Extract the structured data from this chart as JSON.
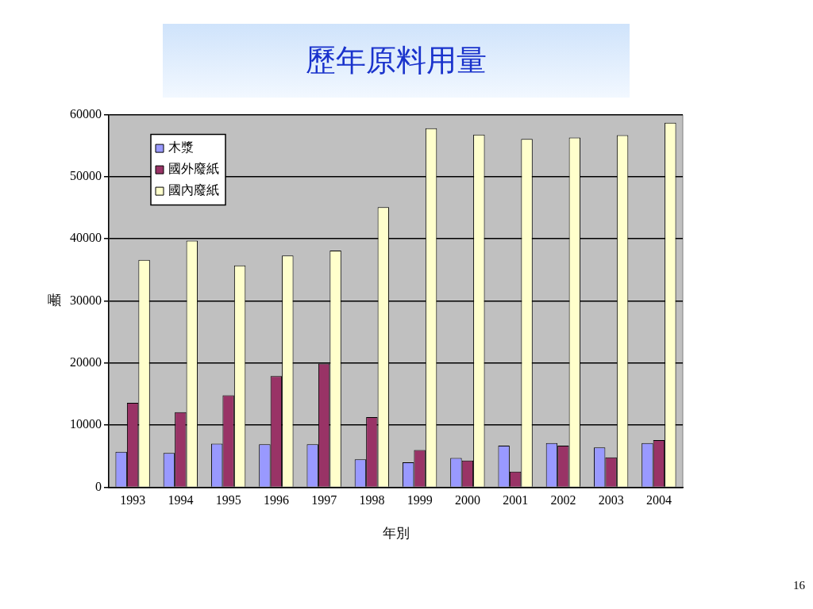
{
  "chart_data": {
    "type": "bar",
    "title": "歷年原料用量",
    "xlabel": "年別",
    "ylabel": "噸",
    "categories": [
      "1993",
      "1994",
      "1995",
      "1996",
      "1997",
      "1998",
      "1999",
      "2000",
      "2001",
      "2002",
      "2003",
      "2004"
    ],
    "series": [
      {
        "name": "木漿",
        "color": "#9999ff",
        "values": [
          5700,
          5500,
          7000,
          6900,
          6900,
          4500,
          4000,
          4700,
          6700,
          7100,
          6400,
          7100
        ]
      },
      {
        "name": "國外廢紙",
        "color": "#993366",
        "values": [
          13600,
          12100,
          14800,
          17900,
          19900,
          11300,
          6000,
          4300,
          2500,
          6700,
          4800,
          7600
        ]
      },
      {
        "name": "國內廢紙",
        "color": "#ffffcc",
        "values": [
          36600,
          39700,
          35700,
          37300,
          38100,
          45100,
          57800,
          56800,
          56100,
          56300,
          56700,
          58700
        ]
      }
    ],
    "ylim": [
      0,
      60000
    ],
    "yticks": [
      0,
      10000,
      20000,
      30000,
      40000,
      50000,
      60000
    ],
    "grid": "y",
    "legend": "top left",
    "annotations": [
      "16"
    ]
  }
}
